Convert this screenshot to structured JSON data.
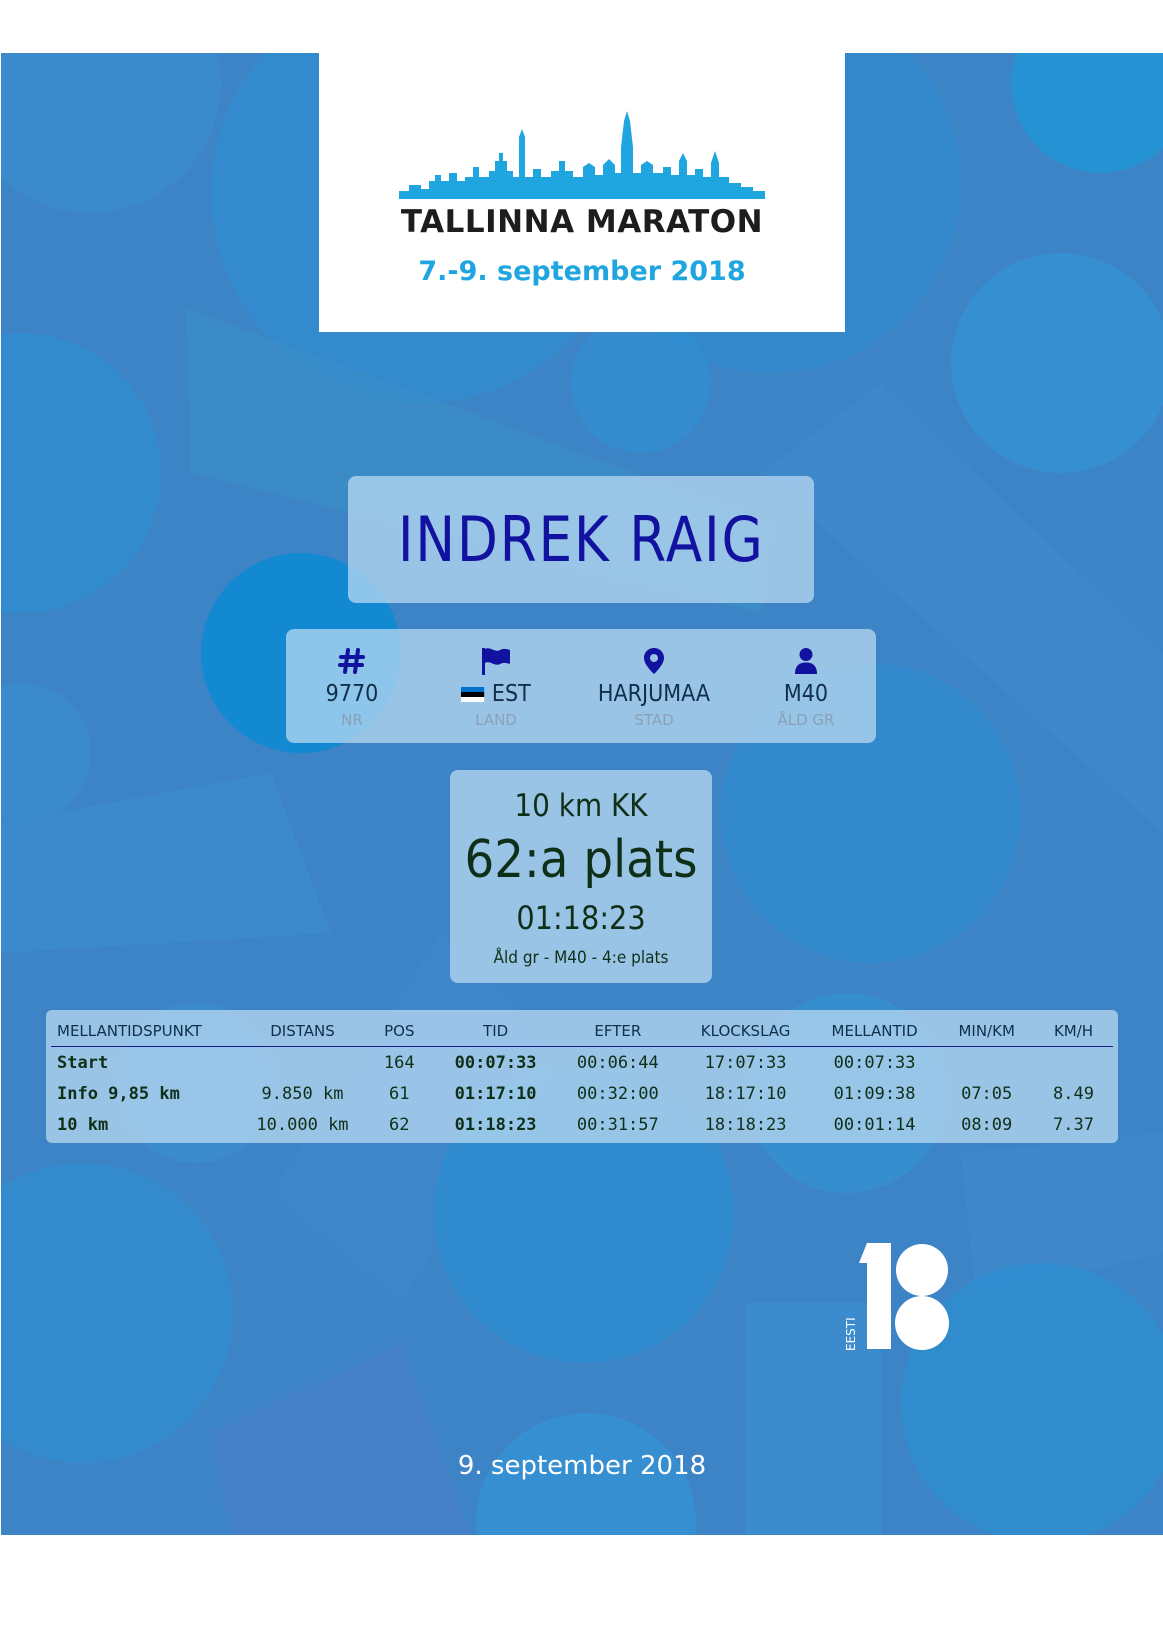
{
  "logo": {
    "title": "TALLINNA MARATON",
    "dates": "7.-9. september 2018",
    "skyline_color": "#1fa6e0"
  },
  "participant": {
    "name": "INDREK RAIG"
  },
  "info": [
    {
      "icon": "hash-icon",
      "value": "9770",
      "label": "NR"
    },
    {
      "icon": "flag-icon",
      "value": "EST",
      "label": "LAND"
    },
    {
      "icon": "map-pin-icon",
      "value": "HARJUMAA",
      "label": "STAD"
    },
    {
      "icon": "user-icon",
      "value": "M40",
      "label": "ÅLD GR"
    }
  ],
  "result": {
    "distance": "10 km KK",
    "place": "62:a plats",
    "time": "01:18:23",
    "age_group": "Åld gr - M40 - 4:e plats"
  },
  "splits": {
    "headers": [
      "MELLANTIDSPUNKT",
      "DISTANS",
      "POS",
      "TID",
      "EFTER",
      "KLOCKSLAG",
      "MELLANTID",
      "MIN/KM",
      "KM/H"
    ],
    "rows": [
      [
        "Start",
        "",
        "164",
        "00:07:33",
        "00:06:44",
        "17:07:33",
        "00:07:33",
        "",
        ""
      ],
      [
        "Info 9,85 km",
        "9.850 km",
        "61",
        "01:17:10",
        "00:32:00",
        "18:17:10",
        "01:09:38",
        "07:05",
        "8.49"
      ],
      [
        "10 km",
        "10.000 km",
        "62",
        "01:18:23",
        "00:31:57",
        "18:18:23",
        "00:01:14",
        "08:09",
        "7.37"
      ]
    ]
  },
  "eesti_logo": {
    "text": "EESTI",
    "number": "18"
  },
  "footer": {
    "date": "9. september 2018"
  },
  "colors": {
    "background": "#3d84c7",
    "panel": "#bedcf2",
    "name": "#1212a0",
    "icon": "#1212a0"
  }
}
